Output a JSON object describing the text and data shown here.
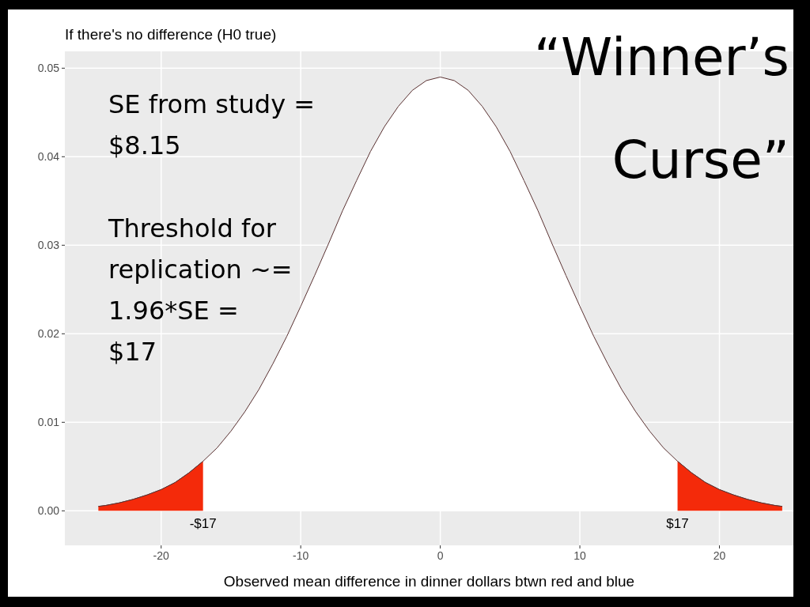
{
  "chart_data": {
    "type": "area",
    "title": "If there's no difference (H0 true)",
    "xlabel": "Observed mean difference in dinner dollars btwn red and blue",
    "series": [
      {
        "color": "#ffffff",
        "x": [
          -24.5,
          -24,
          -23,
          -22,
          -21,
          -20,
          -19,
          -18,
          -17,
          -16,
          -15,
          -14,
          -13,
          -12,
          -11,
          -10,
          -9,
          -8,
          -7,
          -6,
          -5,
          -4,
          -3,
          -2,
          -1,
          0,
          1,
          2,
          3,
          4,
          5,
          6,
          7,
          8,
          9,
          10,
          11,
          12,
          13,
          14,
          15,
          16,
          17,
          18,
          19,
          20,
          21,
          22,
          23,
          24,
          24.5
        ],
        "values": [
          0.0005,
          0.0006,
          0.0009,
          0.0013,
          0.0018,
          0.0024,
          0.0032,
          0.0043,
          0.0056,
          0.0071,
          0.009,
          0.0112,
          0.0137,
          0.0166,
          0.0197,
          0.0231,
          0.0266,
          0.0302,
          0.0339,
          0.0373,
          0.0406,
          0.0434,
          0.0457,
          0.0475,
          0.0486,
          0.049,
          0.0486,
          0.0475,
          0.0457,
          0.0434,
          0.0406,
          0.0373,
          0.0339,
          0.0302,
          0.0266,
          0.0231,
          0.0197,
          0.0166,
          0.0137,
          0.0112,
          0.009,
          0.0071,
          0.0056,
          0.0043,
          0.0032,
          0.0024,
          0.0018,
          0.0013,
          0.0009,
          0.0006,
          0.0005
        ]
      },
      {
        "color": "#f42a0a",
        "x": [
          -24.5,
          -24,
          -23,
          -22,
          -21,
          -20,
          -19,
          -18,
          -17
        ],
        "values": [
          0.0005,
          0.0006,
          0.0009,
          0.0013,
          0.0018,
          0.0024,
          0.0032,
          0.0043,
          0.0056
        ]
      },
      {
        "color": "#f42a0a",
        "x": [
          17,
          18,
          19,
          20,
          21,
          22,
          23,
          24,
          24.5
        ],
        "values": [
          0.0056,
          0.0043,
          0.0032,
          0.0024,
          0.0018,
          0.0013,
          0.0009,
          0.0006,
          0.0005
        ]
      }
    ],
    "xlim": [
      -26.9,
      25.3
    ],
    "xticks": [
      -20,
      -10,
      0,
      10,
      20
    ],
    "ylim": [
      -0.0039,
      0.0519
    ],
    "yticks": [
      {
        "value": 0,
        "label": "0.00"
      },
      {
        "value": 0.01,
        "label": "0.01"
      },
      {
        "value": 0.02,
        "label": "0.02"
      },
      {
        "value": 0.03,
        "label": "0.03"
      },
      {
        "value": 0.04,
        "label": "0.04"
      },
      {
        "value": 0.05,
        "label": "0.05"
      }
    ],
    "grid": true,
    "annotations": [
      "SE from study =\n$8.15",
      "Threshold for\nreplication ~=\n1.96*SE =\n$17",
      "“Winner’s\nCurse”",
      {
        "text": "-$17",
        "x": -17,
        "y": 0
      },
      {
        "text": "$17",
        "x": 17,
        "y": 0
      }
    ]
  }
}
